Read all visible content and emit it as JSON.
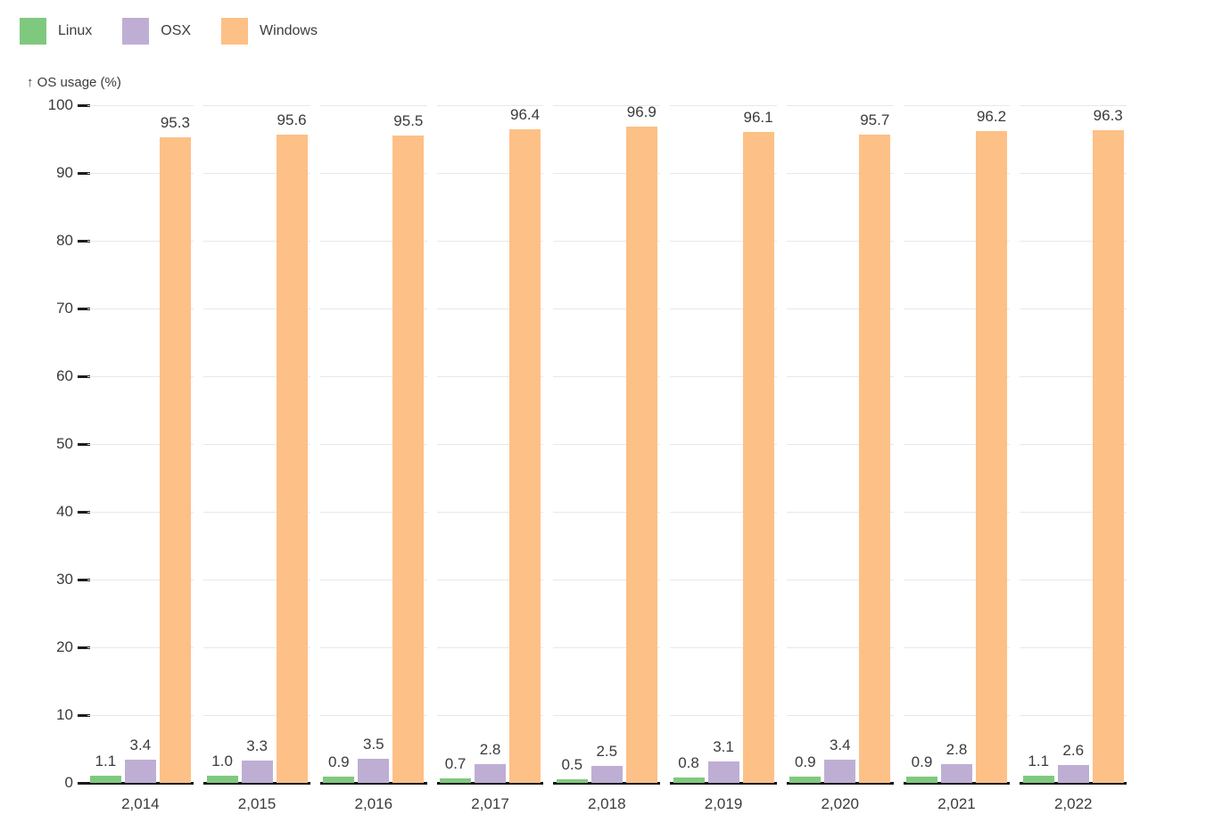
{
  "chart_data": {
    "type": "bar",
    "title": "",
    "y_axis": {
      "label": "↑ OS usage (%)",
      "ticks": [
        0,
        10,
        20,
        30,
        40,
        50,
        60,
        70,
        80,
        90,
        100
      ],
      "ylim": [
        0,
        100
      ]
    },
    "x_axis": {
      "tick_format": "thousands-comma"
    },
    "categories": [
      "2,014",
      "2,015",
      "2,016",
      "2,017",
      "2,018",
      "2,019",
      "2,020",
      "2,021",
      "2,022"
    ],
    "series": [
      {
        "name": "Linux",
        "color": "#7fc97f",
        "values": [
          1.1,
          1.0,
          0.9,
          0.7,
          0.5,
          0.8,
          0.9,
          0.9,
          1.1
        ],
        "labels": [
          "1.1",
          "1.0",
          "0.9",
          "0.7",
          "0.5",
          "0.8",
          "0.9",
          "0.9",
          "1.1"
        ]
      },
      {
        "name": "OSX",
        "color": "#beaed4",
        "values": [
          3.4,
          3.3,
          3.5,
          2.8,
          2.5,
          3.1,
          3.4,
          2.8,
          2.6
        ],
        "labels": [
          "3.4",
          "3.3",
          "3.5",
          "2.8",
          "2.5",
          "3.1",
          "3.4",
          "2.8",
          "2.6"
        ]
      },
      {
        "name": "Windows",
        "color": "#fdc086",
        "values": [
          95.3,
          95.6,
          95.5,
          96.4,
          96.9,
          96.1,
          95.7,
          96.2,
          96.3
        ],
        "labels": [
          "95.3",
          "95.6",
          "95.5",
          "96.4",
          "96.9",
          "96.1",
          "95.7",
          "96.2",
          "96.3"
        ]
      }
    ],
    "legend": {
      "position": "top-left",
      "entries": [
        "Linux",
        "OSX",
        "Windows"
      ]
    },
    "grid": true,
    "colors": {
      "text": "#3b3b3b",
      "gridline": "#e8e8e8",
      "axis_line": "#141414",
      "background": "#ffffff"
    }
  }
}
